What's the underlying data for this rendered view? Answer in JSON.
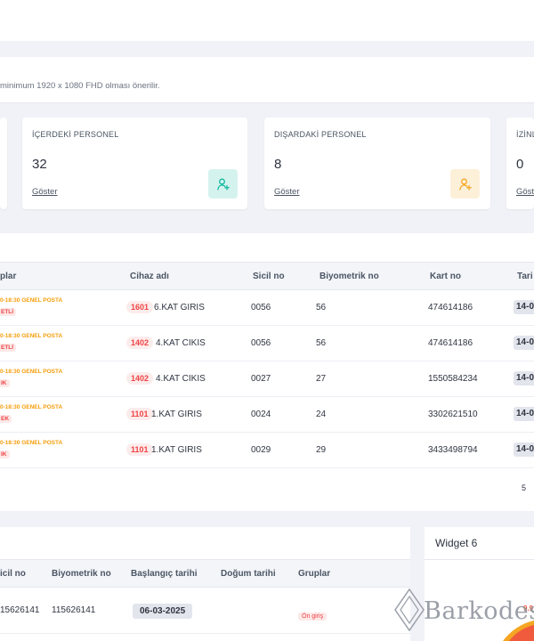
{
  "notice": {
    "text": "minimum 1920 x 1080 FHD olması önerilir."
  },
  "cards": [
    {
      "title": "İÇERDEKİ PERSONEL",
      "value": "32",
      "link": "Göster",
      "icon": "user-add-icon",
      "color": "#12b8a0",
      "bg": "#d5f3ee"
    },
    {
      "title": "DIŞARDAKİ PERSONEL",
      "value": "8",
      "link": "Göster",
      "icon": "user-add-icon",
      "color": "#f5a623",
      "bg": "#fdf0d9"
    },
    {
      "title": "İZİNL",
      "value": "0",
      "link": "Göst"
    }
  ],
  "table1": {
    "headers": [
      "plar",
      "Cihaz adı",
      "Sicil no",
      "Biyometrik no",
      "Kart no",
      "Tari"
    ],
    "rows": [
      {
        "shift": "0-18:30 GENEL POSTA",
        "status": "ETLİ",
        "dev_code": "1601",
        "dev_name": "6.KAT GIRIS",
        "sicil": "0056",
        "bio": "56",
        "kart": "474614186",
        "date": "14-0"
      },
      {
        "shift": "0-18:30 GENEL POSTA",
        "status": "ETLİ",
        "dev_code": "1402",
        "dev_name": "4.KAT CIKIS",
        "sicil": "0056",
        "bio": "56",
        "kart": "474614186",
        "date": "14-0"
      },
      {
        "shift": "0-18:30 GENEL POSTA",
        "status": "IK",
        "dev_code": "1402",
        "dev_name": "4.KAT CIKIS",
        "sicil": "0027",
        "bio": "27",
        "kart": "1550584234",
        "date": "14-0"
      },
      {
        "shift": "0-18:30 GENEL POSTA",
        "status": "EK",
        "dev_code": "1101",
        "dev_name": "1.KAT GIRIS",
        "sicil": "0024",
        "bio": "24",
        "kart": "3302621510",
        "date": "14-0"
      },
      {
        "shift": "0-18:30 GENEL POSTA",
        "status": "IK",
        "dev_code": "1101",
        "dev_name": "1.KAT GIRIS",
        "sicil": "0029",
        "bio": "29",
        "kart": "3433498794",
        "date": "14-0"
      }
    ],
    "page": "5"
  },
  "table2": {
    "headers": [
      "icil no",
      "Biyometrik no",
      "Başlangıç tarihi",
      "Doğum tarihi",
      "Gruplar"
    ],
    "row": {
      "sicil": "15626141",
      "bio": "115626141",
      "start": "06-03-2025",
      "group": "Ön giriş"
    }
  },
  "widget": {
    "title": "Widget 6",
    "badge": "9.9",
    "accent": "#f5a623"
  },
  "watermark": {
    "text": "Barkodes"
  }
}
